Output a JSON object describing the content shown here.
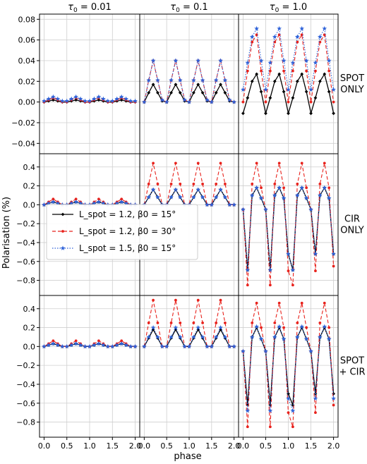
{
  "chart_data": {
    "type": "line",
    "ylabel": "Polarisation (%)",
    "xlabel": "phase",
    "columns": [
      {
        "tau_base": "τ",
        "tau_sub": "0",
        "tau_rest": " = 0.01"
      },
      {
        "tau_base": "τ",
        "tau_sub": "0",
        "tau_rest": " = 0.1"
      },
      {
        "tau_base": "τ",
        "tau_sub": "0",
        "tau_rest": " = 1.0"
      }
    ],
    "rows": [
      {
        "label_lines": [
          "SPOT",
          "ONLY"
        ],
        "ylim": [
          -0.05,
          0.085
        ],
        "yticks": [
          -0.04,
          -0.02,
          0.0,
          0.02,
          0.04,
          0.06,
          0.08
        ],
        "ytick_labels": [
          "−0.04",
          "−0.02",
          "0.00",
          "0.02",
          "0.04",
          "0.06",
          "0.08"
        ]
      },
      {
        "label_lines": [
          "CIR",
          "ONLY"
        ],
        "ylim": [
          -0.96,
          0.54
        ],
        "yticks": [
          -0.8,
          -0.6,
          -0.4,
          -0.2,
          0.0,
          0.2,
          0.4
        ],
        "ytick_labels": [
          "−0.8",
          "−0.6",
          "−0.4",
          "−0.2",
          "0.0",
          "0.2",
          "0.4"
        ]
      },
      {
        "label_lines": [
          "SPOT",
          "+ CIR"
        ],
        "ylim": [
          -0.96,
          0.54
        ],
        "yticks": [
          -0.8,
          -0.6,
          -0.4,
          -0.2,
          0.0,
          0.2,
          0.4
        ],
        "ytick_labels": [
          "−0.8",
          "−0.6",
          "−0.4",
          "−0.2",
          "0.0",
          "0.2",
          "0.4"
        ]
      }
    ],
    "xlim": [
      -0.1,
      2.1
    ],
    "xticks": [
      "0.0",
      "0.5",
      "1.0",
      "1.5",
      "2.0"
    ],
    "grid": true,
    "legend": {
      "placement": "middle-left of CIR ONLY row",
      "entries": [
        {
          "series": "s1",
          "label": "L_spot = 1.2, β0 = 15°"
        },
        {
          "series": "s2",
          "label": "L_spot = 1.2, β0 = 30°"
        },
        {
          "series": "s3",
          "label": "L_spot = 1.5, β0 = 15°"
        }
      ]
    },
    "series_style": [
      {
        "id": "s1",
        "color": "#000000",
        "dash": "",
        "marker": "diamond"
      },
      {
        "id": "s2",
        "color": "#e8211b",
        "dash": "5,3",
        "marker": "dot"
      },
      {
        "id": "s3",
        "color": "#2e62d9",
        "dash": "1.5,2",
        "marker": "star"
      }
    ],
    "x": [
      0.0,
      0.1,
      0.2,
      0.3,
      0.4,
      0.5,
      0.6,
      0.7,
      0.8,
      0.9,
      1.0,
      1.1,
      1.2,
      1.3,
      1.4,
      1.5,
      1.6,
      1.7,
      1.8,
      1.9,
      2.0
    ],
    "panels": [
      {
        "row": 0,
        "col": 0,
        "series": {
          "s1": [
            0.0,
            0.001,
            0.002,
            0.001,
            0.0,
            0.0,
            0.001,
            0.002,
            0.001,
            0.0,
            0.0,
            0.001,
            0.002,
            0.001,
            0.0,
            0.0,
            0.001,
            0.002,
            0.001,
            0.0,
            0.0
          ],
          "s2": [
            0.0,
            0.002,
            0.004,
            0.002,
            0.0,
            0.0,
            0.002,
            0.004,
            0.002,
            0.0,
            0.0,
            0.002,
            0.004,
            0.002,
            0.0,
            0.0,
            0.002,
            0.004,
            0.002,
            0.0,
            0.0
          ],
          "s3": [
            0.001,
            0.003,
            0.005,
            0.003,
            0.001,
            0.001,
            0.003,
            0.005,
            0.003,
            0.001,
            0.001,
            0.003,
            0.005,
            0.003,
            0.001,
            0.001,
            0.003,
            0.005,
            0.003,
            0.001,
            0.001
          ]
        }
      },
      {
        "row": 0,
        "col": 1,
        "series": {
          "s1": [
            0.0,
            0.009,
            0.017,
            0.009,
            0.001,
            0.0,
            0.009,
            0.017,
            0.009,
            0.001,
            0.0,
            0.009,
            0.017,
            0.009,
            0.001,
            0.0,
            0.009,
            0.017,
            0.009,
            0.001,
            0.0
          ],
          "s2": [
            0.0,
            0.021,
            0.04,
            0.021,
            0.002,
            0.0,
            0.021,
            0.04,
            0.021,
            0.002,
            0.0,
            0.021,
            0.04,
            0.021,
            0.002,
            0.0,
            0.021,
            0.04,
            0.021,
            0.002,
            0.0
          ],
          "s3": [
            0.0,
            0.021,
            0.04,
            0.021,
            0.002,
            0.0,
            0.021,
            0.04,
            0.021,
            0.002,
            0.0,
            0.021,
            0.04,
            0.021,
            0.002,
            0.0,
            0.021,
            0.04,
            0.021,
            0.002,
            0.0
          ]
        }
      },
      {
        "row": 0,
        "col": 2,
        "series": {
          "s1": [
            -0.011,
            0.004,
            0.02,
            0.027,
            0.01,
            -0.011,
            0.004,
            0.02,
            0.027,
            0.01,
            -0.011,
            0.004,
            0.02,
            0.027,
            0.01,
            -0.011,
            0.004,
            0.02,
            0.027,
            0.01,
            -0.011
          ],
          "s2": [
            0.0,
            0.03,
            0.058,
            0.065,
            0.03,
            0.0,
            0.03,
            0.058,
            0.065,
            0.03,
            0.0,
            0.03,
            0.058,
            0.065,
            0.03,
            0.0,
            0.03,
            0.058,
            0.065,
            0.03,
            0.0
          ],
          "s3": [
            0.012,
            0.038,
            0.063,
            0.071,
            0.04,
            0.012,
            0.038,
            0.063,
            0.071,
            0.04,
            0.012,
            0.038,
            0.063,
            0.071,
            0.04,
            0.012,
            0.038,
            0.063,
            0.071,
            0.04,
            0.012
          ]
        }
      },
      {
        "row": 1,
        "col": 0,
        "series": {
          "s1": [
            0.0,
            0.015,
            0.03,
            0.015,
            0.0,
            0.0,
            0.015,
            0.03,
            0.015,
            0.0,
            0.0,
            0.015,
            0.03,
            0.015,
            0.0,
            0.0,
            0.015,
            0.03,
            0.015,
            0.0,
            0.0
          ],
          "s2": [
            0.0,
            0.03,
            0.06,
            0.03,
            0.0,
            0.0,
            0.03,
            0.06,
            0.03,
            0.0,
            0.0,
            0.03,
            0.06,
            0.03,
            0.0,
            0.0,
            0.03,
            0.06,
            0.03,
            0.0,
            0.0
          ],
          "s3": [
            0.0,
            0.015,
            0.03,
            0.015,
            0.0,
            0.0,
            0.015,
            0.03,
            0.015,
            0.0,
            0.0,
            0.015,
            0.03,
            0.015,
            0.0,
            0.0,
            0.015,
            0.03,
            0.015,
            0.0,
            0.0
          ]
        }
      },
      {
        "row": 1,
        "col": 1,
        "series": {
          "s1": [
            0.0,
            0.08,
            0.16,
            0.08,
            0.0,
            0.0,
            0.08,
            0.16,
            0.08,
            0.0,
            0.0,
            0.08,
            0.16,
            0.08,
            0.0,
            0.0,
            0.08,
            0.16,
            0.08,
            0.0,
            0.0
          ],
          "s2": [
            0.0,
            0.22,
            0.44,
            0.22,
            0.0,
            0.0,
            0.22,
            0.44,
            0.22,
            0.0,
            0.0,
            0.22,
            0.44,
            0.22,
            0.0,
            0.0,
            0.22,
            0.44,
            0.22,
            0.0,
            0.0
          ],
          "s3": [
            0.0,
            0.08,
            0.16,
            0.08,
            0.0,
            0.0,
            0.08,
            0.16,
            0.08,
            0.0,
            0.0,
            0.08,
            0.16,
            0.08,
            0.0,
            0.0,
            0.08,
            0.16,
            0.08,
            0.0,
            0.0
          ]
        }
      },
      {
        "row": 1,
        "col": 2,
        "series": {
          "s1": [
            -0.05,
            -0.69,
            0.1,
            0.18,
            0.07,
            -0.05,
            -0.69,
            0.1,
            0.18,
            0.07,
            -0.52,
            -0.69,
            0.1,
            0.18,
            0.07,
            -0.05,
            -0.52,
            0.1,
            0.18,
            0.07,
            -0.52
          ],
          "s2": [
            -0.05,
            -0.85,
            0.22,
            0.44,
            0.18,
            -0.05,
            -0.85,
            0.22,
            0.44,
            0.18,
            -0.7,
            -0.85,
            0.22,
            0.44,
            0.18,
            -0.05,
            -0.7,
            0.22,
            0.44,
            0.18,
            -0.65
          ],
          "s3": [
            -0.05,
            -0.69,
            0.1,
            0.18,
            0.07,
            -0.05,
            -0.69,
            0.1,
            0.18,
            0.07,
            -0.52,
            -0.69,
            0.1,
            0.18,
            0.07,
            -0.05,
            -0.52,
            0.1,
            0.18,
            0.07,
            -0.52
          ]
        }
      },
      {
        "row": 2,
        "col": 0,
        "series": {
          "s1": [
            0.0,
            0.015,
            0.03,
            0.015,
            0.0,
            0.0,
            0.015,
            0.03,
            0.015,
            0.0,
            0.0,
            0.015,
            0.03,
            0.015,
            0.0,
            0.0,
            0.015,
            0.03,
            0.015,
            0.0,
            0.0
          ],
          "s2": [
            0.0,
            0.03,
            0.06,
            0.03,
            0.0,
            0.0,
            0.03,
            0.06,
            0.03,
            0.0,
            0.0,
            0.03,
            0.06,
            0.03,
            0.0,
            0.0,
            0.03,
            0.06,
            0.03,
            0.0,
            0.0
          ],
          "s3": [
            0.0,
            0.015,
            0.03,
            0.015,
            0.0,
            0.0,
            0.015,
            0.03,
            0.015,
            0.0,
            0.0,
            0.015,
            0.03,
            0.015,
            0.0,
            0.0,
            0.015,
            0.03,
            0.015,
            0.0,
            0.0
          ]
        }
      },
      {
        "row": 2,
        "col": 1,
        "series": {
          "s1": [
            0.0,
            0.09,
            0.18,
            0.09,
            0.0,
            0.0,
            0.09,
            0.18,
            0.09,
            0.0,
            0.0,
            0.09,
            0.18,
            0.09,
            0.0,
            0.0,
            0.09,
            0.18,
            0.09,
            0.0,
            0.0
          ],
          "s2": [
            0.0,
            0.25,
            0.49,
            0.25,
            0.0,
            0.0,
            0.25,
            0.49,
            0.25,
            0.0,
            0.0,
            0.25,
            0.49,
            0.25,
            0.0,
            0.0,
            0.25,
            0.49,
            0.25,
            0.0,
            0.0
          ],
          "s3": [
            0.0,
            0.1,
            0.2,
            0.1,
            0.0,
            0.0,
            0.1,
            0.2,
            0.1,
            0.0,
            0.0,
            0.1,
            0.2,
            0.1,
            0.0,
            0.0,
            0.1,
            0.2,
            0.1,
            0.0,
            0.0
          ]
        }
      },
      {
        "row": 2,
        "col": 2,
        "series": {
          "s1": [
            -0.05,
            -0.62,
            0.1,
            0.2,
            0.08,
            -0.05,
            -0.62,
            0.1,
            0.2,
            0.08,
            -0.5,
            -0.62,
            0.1,
            0.2,
            0.08,
            -0.05,
            -0.5,
            0.1,
            0.2,
            0.08,
            -0.5
          ],
          "s2": [
            -0.05,
            -0.85,
            0.25,
            0.46,
            0.2,
            -0.05,
            -0.85,
            0.25,
            0.46,
            0.2,
            -0.7,
            -0.85,
            0.25,
            0.46,
            0.2,
            -0.05,
            -0.7,
            0.25,
            0.46,
            0.2,
            -0.62
          ],
          "s3": [
            -0.05,
            -0.68,
            0.1,
            0.21,
            0.08,
            -0.05,
            -0.68,
            0.1,
            0.21,
            0.08,
            -0.55,
            -0.68,
            0.1,
            0.21,
            0.08,
            -0.05,
            -0.55,
            0.1,
            0.21,
            0.08,
            -0.55
          ]
        }
      }
    ]
  }
}
